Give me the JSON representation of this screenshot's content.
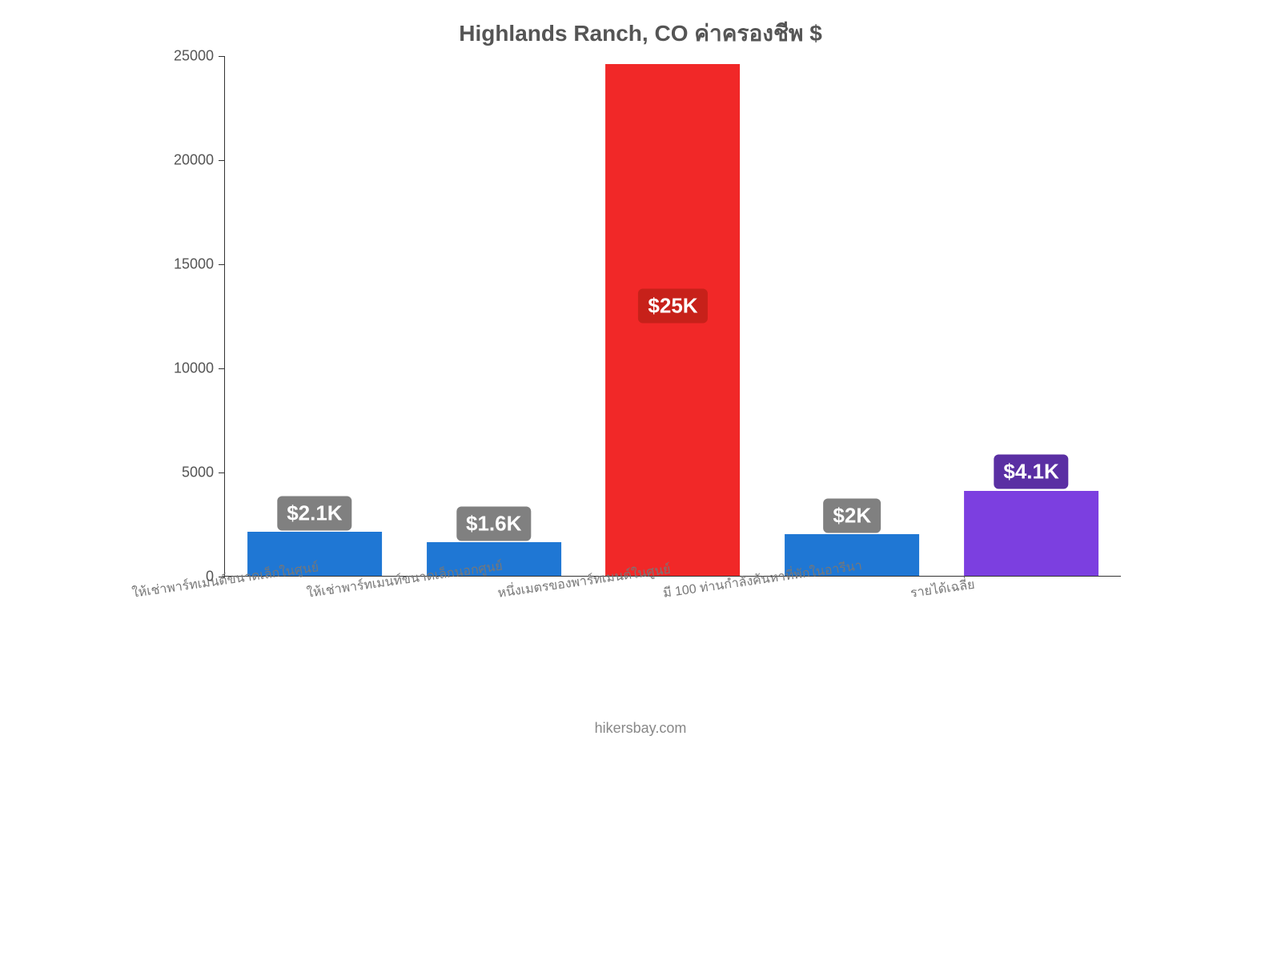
{
  "chart": {
    "type": "bar",
    "title": "Highlands Ranch, CO ค่าครองชีพ $",
    "title_fontsize": 28,
    "title_color": "#555555",
    "background_color": "#ffffff",
    "axis_color": "#333333",
    "xlabel_color": "#777777",
    "xlabel_fontsize": 16,
    "xlabel_rotation_deg": -8,
    "ylim": [
      0,
      25000
    ],
    "ytick_step": 5000,
    "ytick_label_color": "#555555",
    "ytick_label_fontsize": 18,
    "bar_width_pct": 75,
    "badge_fontsize": 26,
    "footer": "hikersbay.com",
    "categories": [
      {
        "label": "ให้เช่าพาร์ทเมนต์ขนาดเล็กในศูนย์",
        "value": 2100,
        "display": "$2.1K",
        "bar_color": "#1f77d4",
        "badge_color": "#808080"
      },
      {
        "label": "ให้เช่าพาร์ทเมนท์ขนาดเล็กนอกศูนย์",
        "value": 1600,
        "display": "$1.6K",
        "bar_color": "#1f77d4",
        "badge_color": "#808080"
      },
      {
        "label": "หนึ่งเมตรของพาร์ทเมนต์ในศูนย์",
        "value": 24600,
        "display": "$25K",
        "bar_color": "#f12828",
        "badge_color": "#c7211a"
      },
      {
        "label": "มี 100 ท่านกำลังค้นหาที่พักในอารีนา",
        "value": 2000,
        "display": "$2K",
        "bar_color": "#1f77d4",
        "badge_color": "#808080"
      },
      {
        "label": "รายได้เฉลี่ย",
        "value": 4100,
        "display": "$4.1K",
        "bar_color": "#7c3fe0",
        "badge_color": "#5a2fa3"
      }
    ]
  }
}
